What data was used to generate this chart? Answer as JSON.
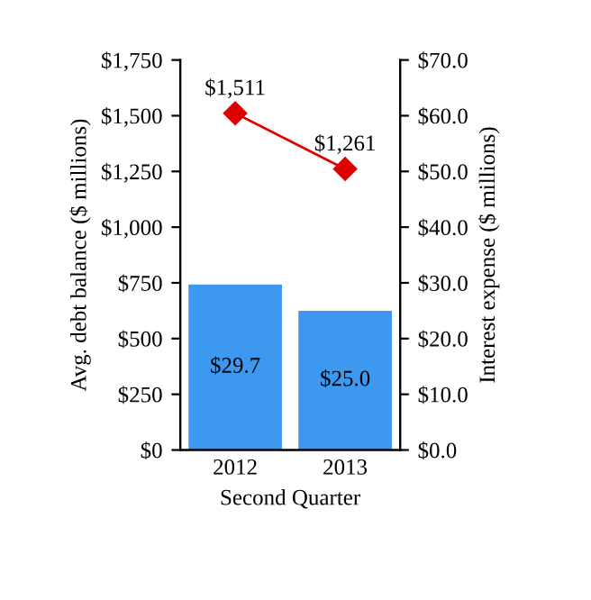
{
  "chart_data": {
    "type": "bar",
    "xlabel": "Second Quarter",
    "ylabel": "Avg. debt balance ($ millions)",
    "y2label": "Interest expense ($ millions)",
    "categories": [
      "2012",
      "2013"
    ],
    "series": [
      {
        "axis": "y2",
        "color": "#3d98f0",
        "values": [
          29.7,
          25.0
        ],
        "value_labels": [
          "$29.7",
          "$25.0"
        ]
      },
      {
        "type": "line",
        "axis": "y",
        "color": "#e00000",
        "marker": "diamond",
        "line_style": "solid",
        "values": [
          1511,
          1261
        ],
        "value_labels": [
          "$1,511",
          "$1,261"
        ]
      }
    ],
    "ylim": [
      0,
      1750
    ],
    "yticks": [
      {
        "value": 0,
        "label": "$0"
      },
      {
        "value": 250,
        "label": "$250"
      },
      {
        "value": 500,
        "label": "$500"
      },
      {
        "value": 750,
        "label": "$750"
      },
      {
        "value": 1000,
        "label": "$1,000"
      },
      {
        "value": 1250,
        "label": "$1,250"
      },
      {
        "value": 1500,
        "label": "$1,500"
      },
      {
        "value": 1750,
        "label": "$1,750"
      }
    ],
    "y2lim": [
      0,
      70
    ],
    "y2ticks": [
      {
        "value": 0,
        "label": "$0.0"
      },
      {
        "value": 10,
        "label": "$10.0"
      },
      {
        "value": 20,
        "label": "$20.0"
      },
      {
        "value": 30,
        "label": "$30.0"
      },
      {
        "value": 40,
        "label": "$40.0"
      },
      {
        "value": 50,
        "label": "$50.0"
      },
      {
        "value": 60,
        "label": "$60.0"
      },
      {
        "value": 70,
        "label": "$70.0"
      }
    ],
    "grid": false,
    "legend": false
  }
}
